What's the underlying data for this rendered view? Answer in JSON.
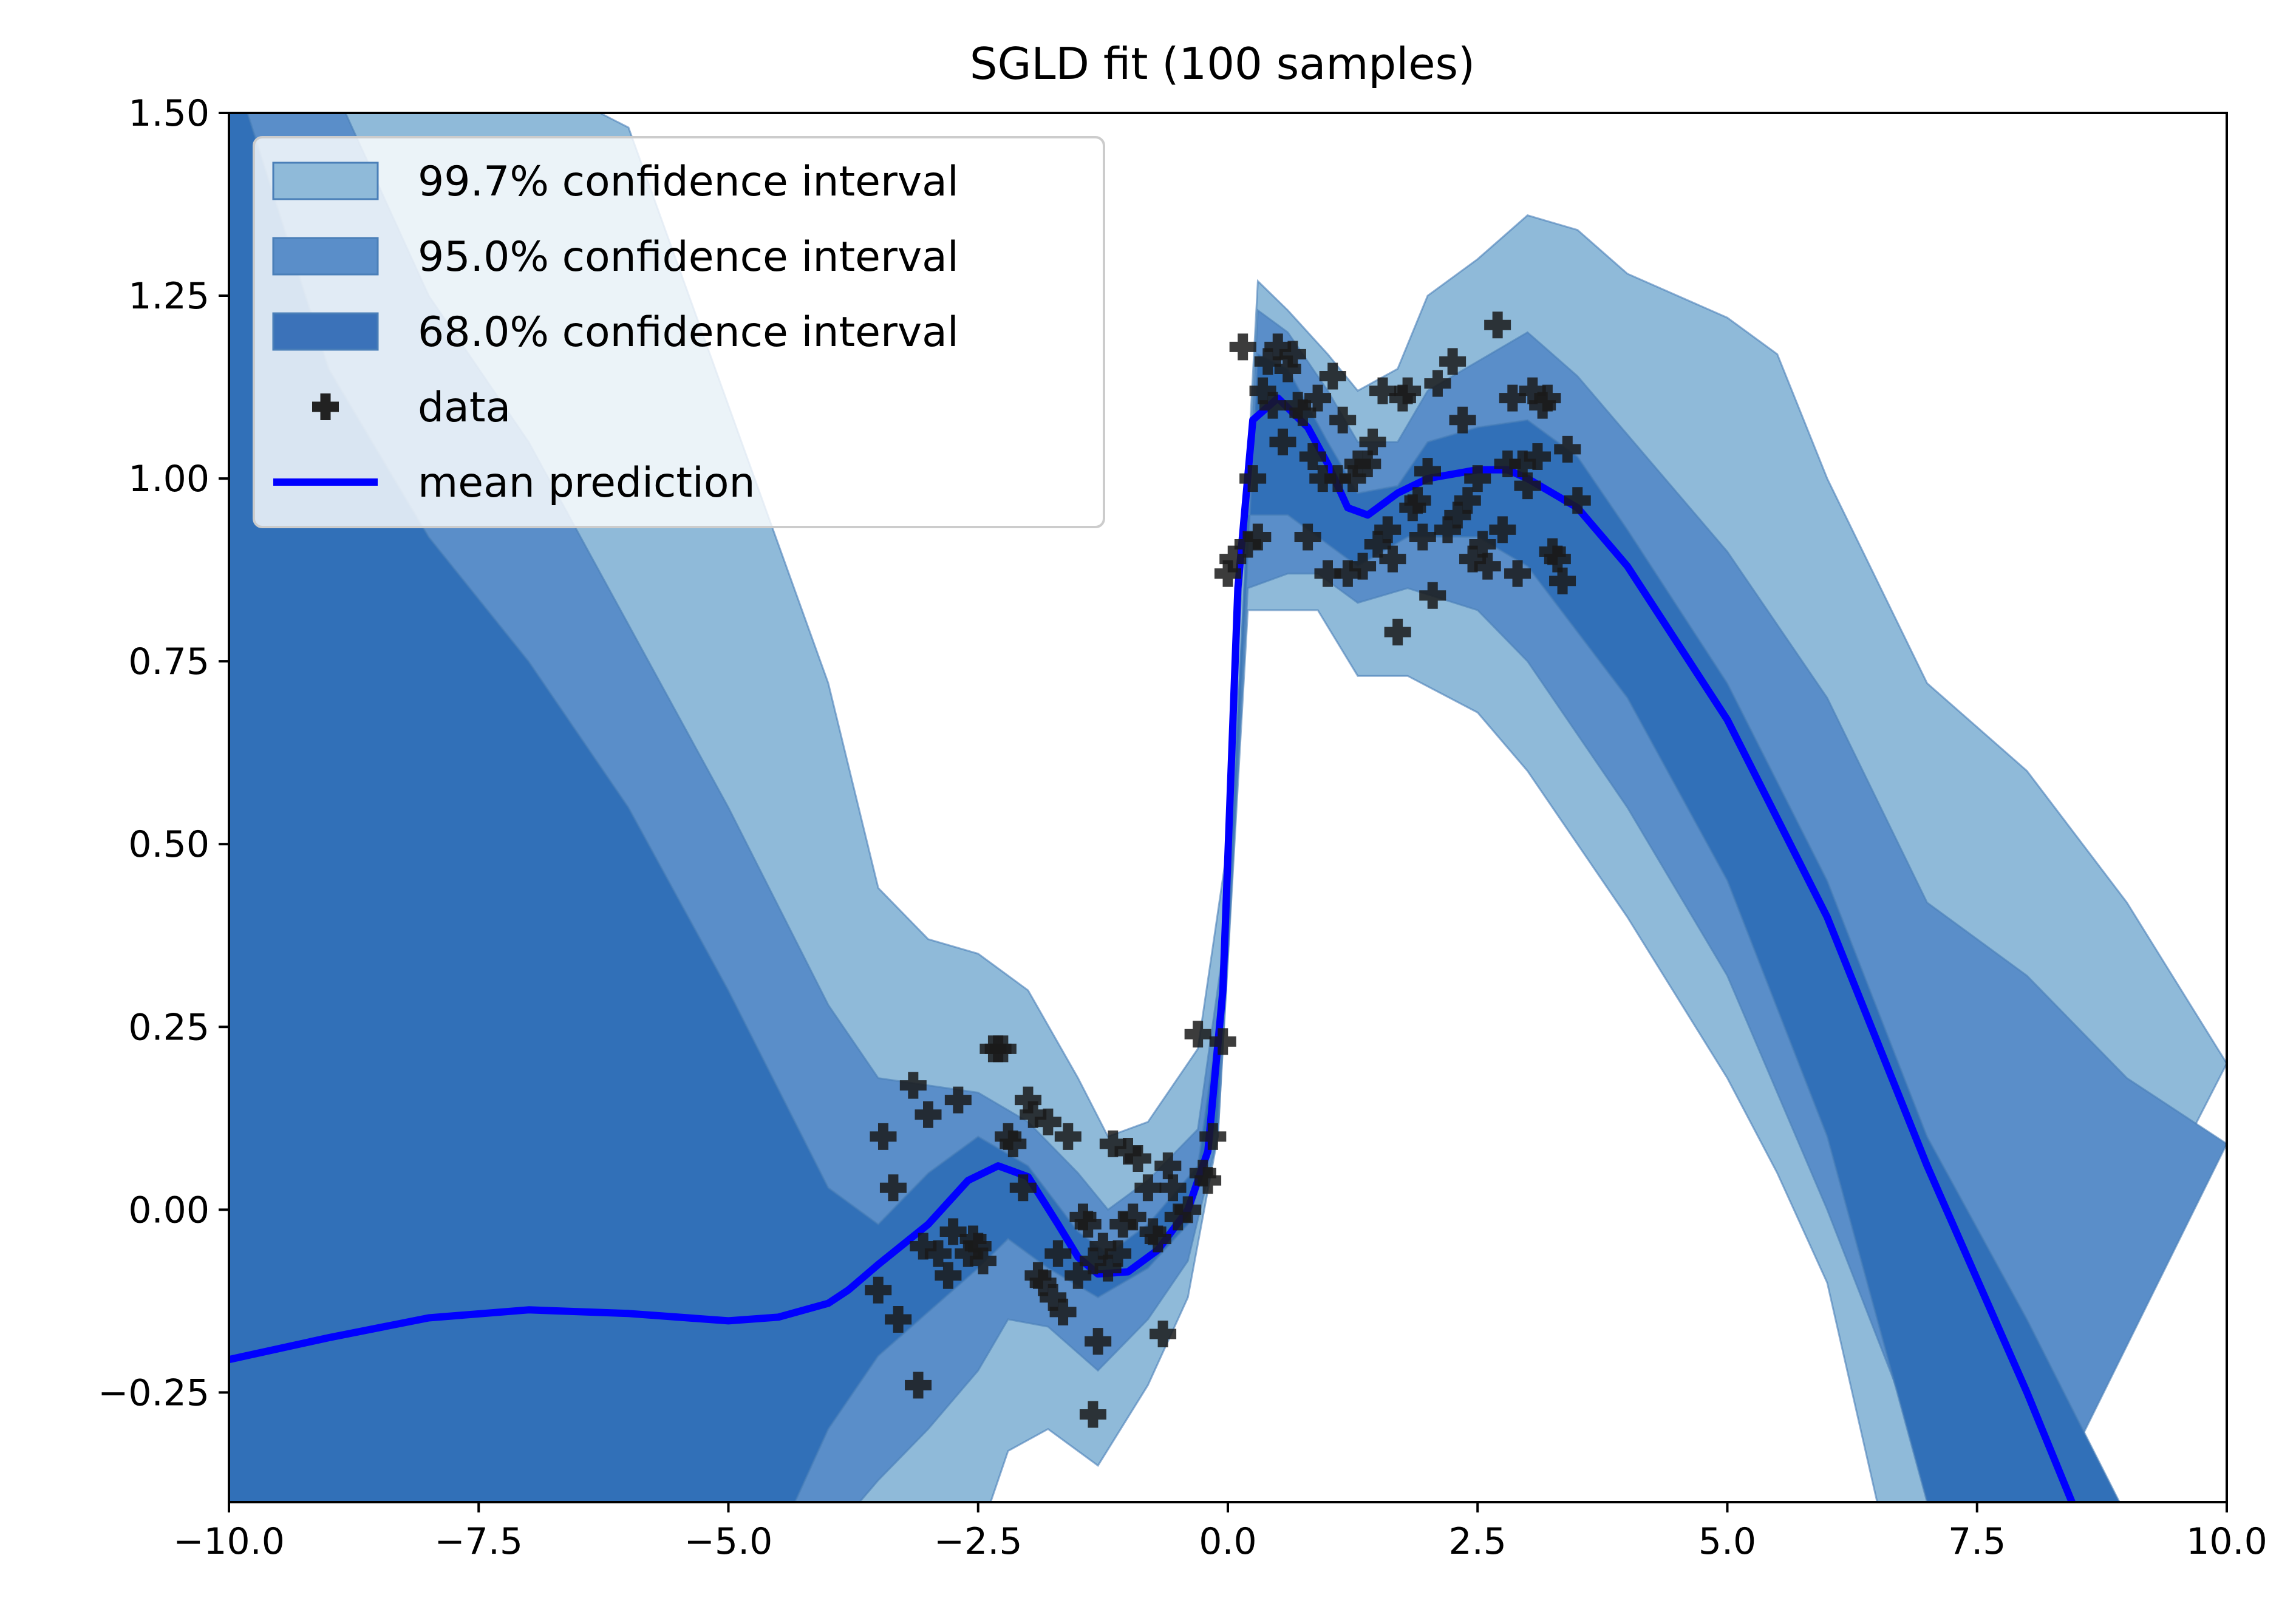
{
  "chart_data": {
    "type": "line",
    "title": "SGLD fit (100 samples)",
    "xlabel": "",
    "ylabel": "",
    "xlim": [
      -10,
      10
    ],
    "ylim": [
      -0.4,
      1.5
    ],
    "x_ticks": [
      -10,
      -7.5,
      -5,
      -2.5,
      0,
      2.5,
      5,
      7.5,
      10
    ],
    "x_tick_labels": [
      "−10.0",
      "−7.5",
      "−5.0",
      "−2.5",
      "0.0",
      "2.5",
      "5.0",
      "7.5",
      "10.0"
    ],
    "y_ticks": [
      -0.25,
      0,
      0.25,
      0.5,
      0.75,
      1.0,
      1.25,
      1.5
    ],
    "y_tick_labels": [
      "−0.25",
      "0.00",
      "0.25",
      "0.50",
      "0.75",
      "1.00",
      "1.25",
      "1.50"
    ],
    "grid": false,
    "legend_position": "upper-left",
    "legend": [
      {
        "label": "99.7% confidence interval",
        "kind": "patch",
        "color": "#8fbad9"
      },
      {
        "label": "95.0% confidence interval",
        "kind": "patch",
        "color": "#5a8ec9"
      },
      {
        "label": "68.0% confidence interval",
        "kind": "patch",
        "color": "#3b72b9"
      },
      {
        "label": "data",
        "kind": "marker",
        "color": "#222222"
      },
      {
        "label": "mean prediction",
        "kind": "line",
        "color": "#0000ff"
      }
    ],
    "bands": [
      {
        "name": "99.7% confidence interval",
        "color": "#8fbad9",
        "upper": [
          [
            -10,
            1.39
          ],
          [
            -9,
            1.55
          ],
          [
            -8,
            1.62
          ],
          [
            -7,
            1.55
          ],
          [
            -6,
            1.48
          ],
          [
            -5,
            1.1
          ],
          [
            -4,
            0.72
          ],
          [
            -3.5,
            0.44
          ],
          [
            -3,
            0.37
          ],
          [
            -2.5,
            0.35
          ],
          [
            -2,
            0.3
          ],
          [
            -1.5,
            0.18
          ],
          [
            -1.2,
            0.1
          ],
          [
            -0.8,
            0.12
          ],
          [
            -0.3,
            0.22
          ],
          [
            0,
            0.5
          ],
          [
            0.3,
            1.27
          ],
          [
            0.6,
            1.23
          ],
          [
            1.0,
            1.17
          ],
          [
            1.3,
            1.12
          ],
          [
            1.7,
            1.15
          ],
          [
            2.0,
            1.25
          ],
          [
            2.5,
            1.3
          ],
          [
            3.0,
            1.36
          ],
          [
            3.5,
            1.34
          ],
          [
            4.0,
            1.28
          ],
          [
            5.0,
            1.22
          ],
          [
            5.5,
            1.17
          ],
          [
            6.0,
            1.0
          ],
          [
            7.0,
            0.72
          ],
          [
            8.0,
            0.6
          ],
          [
            9.0,
            0.42
          ],
          [
            10.0,
            0.2
          ]
        ],
        "lower": [
          [
            -10,
            -0.45
          ],
          [
            -5,
            -0.45
          ],
          [
            -3.5,
            -0.6
          ],
          [
            -2.5,
            -0.45
          ],
          [
            -2.2,
            -0.33
          ],
          [
            -1.8,
            -0.3
          ],
          [
            -1.3,
            -0.35
          ],
          [
            -0.8,
            -0.24
          ],
          [
            -0.4,
            -0.12
          ],
          [
            -0.1,
            0.1
          ],
          [
            0.2,
            0.82
          ],
          [
            0.6,
            0.82
          ],
          [
            0.9,
            0.82
          ],
          [
            1.3,
            0.73
          ],
          [
            1.8,
            0.73
          ],
          [
            2.5,
            0.68
          ],
          [
            3.0,
            0.6
          ],
          [
            4.0,
            0.4
          ],
          [
            5.0,
            0.18
          ],
          [
            5.5,
            0.05
          ],
          [
            6.0,
            -0.1
          ],
          [
            6.5,
            -0.4
          ],
          [
            7.0,
            -0.6
          ]
        ]
      },
      {
        "name": "95.0% confidence interval",
        "color": "#5a8ec9",
        "upper": [
          [
            -10,
            1.58
          ],
          [
            -9,
            1.55
          ],
          [
            -8,
            1.25
          ],
          [
            -7,
            1.05
          ],
          [
            -6,
            0.8
          ],
          [
            -5,
            0.55
          ],
          [
            -4,
            0.28
          ],
          [
            -3.5,
            0.18
          ],
          [
            -3,
            0.17
          ],
          [
            -2.5,
            0.16
          ],
          [
            -2,
            0.12
          ],
          [
            -1.5,
            0.05
          ],
          [
            -1.2,
            0.0
          ],
          [
            -0.8,
            0.04
          ],
          [
            -0.3,
            0.11
          ],
          [
            0,
            0.4
          ],
          [
            0.3,
            1.23
          ],
          [
            0.6,
            1.2
          ],
          [
            1.0,
            1.12
          ],
          [
            1.3,
            1.05
          ],
          [
            1.7,
            1.05
          ],
          [
            2.0,
            1.12
          ],
          [
            2.5,
            1.16
          ],
          [
            3.0,
            1.2
          ],
          [
            3.5,
            1.14
          ],
          [
            4.0,
            1.06
          ],
          [
            5.0,
            0.9
          ],
          [
            6.0,
            0.7
          ],
          [
            7.0,
            0.42
          ],
          [
            8.0,
            0.32
          ],
          [
            9.0,
            0.18
          ],
          [
            10.0,
            0.09
          ]
        ],
        "lower": [
          [
            -10,
            -0.45
          ],
          [
            -4.0,
            -0.45
          ],
          [
            -3.5,
            -0.37
          ],
          [
            -3,
            -0.3
          ],
          [
            -2.5,
            -0.22
          ],
          [
            -2.2,
            -0.15
          ],
          [
            -1.8,
            -0.16
          ],
          [
            -1.3,
            -0.22
          ],
          [
            -0.8,
            -0.15
          ],
          [
            -0.4,
            -0.07
          ],
          [
            -0.1,
            0.1
          ],
          [
            0.2,
            0.85
          ],
          [
            0.6,
            0.87
          ],
          [
            0.9,
            0.87
          ],
          [
            1.3,
            0.83
          ],
          [
            1.8,
            0.85
          ],
          [
            2.5,
            0.82
          ],
          [
            3.0,
            0.75
          ],
          [
            4.0,
            0.55
          ],
          [
            5.0,
            0.32
          ],
          [
            6.0,
            0.0
          ],
          [
            7.0,
            -0.35
          ],
          [
            7.5,
            -0.6
          ]
        ]
      },
      {
        "name": "68.0% confidence interval",
        "color": "#3170b8",
        "upper": [
          [
            -10,
            1.58
          ],
          [
            -9,
            1.15
          ],
          [
            -8,
            0.92
          ],
          [
            -7,
            0.75
          ],
          [
            -6,
            0.55
          ],
          [
            -5,
            0.3
          ],
          [
            -4,
            0.03
          ],
          [
            -3.5,
            -0.02
          ],
          [
            -3,
            0.05
          ],
          [
            -2.5,
            0.1
          ],
          [
            -2,
            0.06
          ],
          [
            -1.5,
            -0.03
          ],
          [
            -1.2,
            -0.06
          ],
          [
            -0.8,
            -0.02
          ],
          [
            -0.3,
            0.06
          ],
          [
            0,
            0.35
          ],
          [
            0.3,
            1.17
          ],
          [
            0.6,
            1.15
          ],
          [
            1.0,
            1.05
          ],
          [
            1.3,
            0.98
          ],
          [
            1.7,
            0.99
          ],
          [
            2.0,
            1.05
          ],
          [
            2.5,
            1.07
          ],
          [
            3.0,
            1.08
          ],
          [
            3.5,
            1.03
          ],
          [
            4.0,
            0.93
          ],
          [
            5.0,
            0.72
          ],
          [
            6.0,
            0.45
          ],
          [
            7.0,
            0.1
          ],
          [
            8.0,
            -0.15
          ],
          [
            9.0,
            -0.42
          ]
        ],
        "lower": [
          [
            -10,
            -0.45
          ],
          [
            -4.5,
            -0.45
          ],
          [
            -4,
            -0.3
          ],
          [
            -3.5,
            -0.2
          ],
          [
            -3,
            -0.14
          ],
          [
            -2.5,
            -0.08
          ],
          [
            -2.2,
            -0.04
          ],
          [
            -1.8,
            -0.08
          ],
          [
            -1.3,
            -0.12
          ],
          [
            -0.8,
            -0.08
          ],
          [
            -0.4,
            -0.02
          ],
          [
            -0.1,
            0.12
          ],
          [
            0.2,
            0.95
          ],
          [
            0.6,
            0.95
          ],
          [
            0.9,
            0.92
          ],
          [
            1.3,
            0.88
          ],
          [
            1.8,
            0.92
          ],
          [
            2.5,
            0.92
          ],
          [
            3.0,
            0.88
          ],
          [
            4.0,
            0.7
          ],
          [
            5.0,
            0.45
          ],
          [
            6.0,
            0.1
          ],
          [
            6.5,
            -0.15
          ],
          [
            7.0,
            -0.4
          ],
          [
            7.2,
            -0.55
          ]
        ]
      }
    ],
    "mean": [
      [
        -10,
        -0.205
      ],
      [
        -9,
        -0.175
      ],
      [
        -8,
        -0.148
      ],
      [
        -7,
        -0.137
      ],
      [
        -6,
        -0.142
      ],
      [
        -5,
        -0.152
      ],
      [
        -4.5,
        -0.147
      ],
      [
        -4,
        -0.128
      ],
      [
        -3.8,
        -0.11
      ],
      [
        -3.5,
        -0.075
      ],
      [
        -3,
        -0.02
      ],
      [
        -2.6,
        0.04
      ],
      [
        -2.3,
        0.06
      ],
      [
        -2.0,
        0.045
      ],
      [
        -1.7,
        -0.02
      ],
      [
        -1.5,
        -0.065
      ],
      [
        -1.3,
        -0.088
      ],
      [
        -1.0,
        -0.085
      ],
      [
        -0.7,
        -0.055
      ],
      [
        -0.4,
        0.0
      ],
      [
        -0.2,
        0.08
      ],
      [
        -0.05,
        0.3
      ],
      [
        0.1,
        0.85
      ],
      [
        0.25,
        1.08
      ],
      [
        0.5,
        1.11
      ],
      [
        0.8,
        1.07
      ],
      [
        1.0,
        1.02
      ],
      [
        1.2,
        0.96
      ],
      [
        1.4,
        0.95
      ],
      [
        1.7,
        0.98
      ],
      [
        2.0,
        1.0
      ],
      [
        2.5,
        1.012
      ],
      [
        2.8,
        1.012
      ],
      [
        3.0,
        1.0
      ],
      [
        3.5,
        0.96
      ],
      [
        4.0,
        0.88
      ],
      [
        5.0,
        0.67
      ],
      [
        6.0,
        0.4
      ],
      [
        7.0,
        0.06
      ],
      [
        8.0,
        -0.25
      ],
      [
        8.6,
        -0.45
      ]
    ],
    "points": [
      [
        -3.45,
        0.1
      ],
      [
        -3.35,
        0.03
      ],
      [
        -3.3,
        -0.15
      ],
      [
        -3.5,
        -0.11
      ],
      [
        -3.15,
        0.17
      ],
      [
        -3.05,
        -0.05
      ],
      [
        -3.0,
        0.13
      ],
      [
        -2.9,
        -0.06
      ],
      [
        -2.8,
        -0.09
      ],
      [
        -2.75,
        -0.03
      ],
      [
        -2.7,
        0.15
      ],
      [
        -2.6,
        -0.06
      ],
      [
        -2.55,
        -0.04
      ],
      [
        -2.5,
        -0.05
      ],
      [
        -2.45,
        -0.07
      ],
      [
        -2.35,
        0.22
      ],
      [
        -2.3,
        0.22
      ],
      [
        -2.25,
        0.22
      ],
      [
        -2.2,
        0.1
      ],
      [
        -2.15,
        0.09
      ],
      [
        -2.05,
        0.03
      ],
      [
        -2.0,
        0.15
      ],
      [
        -1.95,
        0.13
      ],
      [
        -1.9,
        -0.09
      ],
      [
        -1.85,
        -0.1
      ],
      [
        -1.8,
        0.12
      ],
      [
        -1.75,
        -0.12
      ],
      [
        -1.7,
        -0.06
      ],
      [
        -1.65,
        -0.14
      ],
      [
        -1.6,
        0.1
      ],
      [
        -1.5,
        -0.09
      ],
      [
        -1.45,
        -0.01
      ],
      [
        -1.4,
        -0.02
      ],
      [
        -1.35,
        -0.07
      ],
      [
        -1.3,
        -0.18
      ],
      [
        -1.25,
        -0.05
      ],
      [
        -1.2,
        -0.08
      ],
      [
        -1.15,
        0.09
      ],
      [
        -1.1,
        -0.06
      ],
      [
        -1.05,
        -0.02
      ],
      [
        -1.0,
        0.08
      ],
      [
        -0.95,
        -0.01
      ],
      [
        -0.9,
        0.07
      ],
      [
        -0.8,
        0.03
      ],
      [
        -0.75,
        -0.03
      ],
      [
        -0.7,
        -0.04
      ],
      [
        -0.65,
        -0.17
      ],
      [
        -0.6,
        0.06
      ],
      [
        -0.55,
        0.03
      ],
      [
        -0.5,
        -0.01
      ],
      [
        -0.4,
        0.0
      ],
      [
        -0.3,
        0.24
      ],
      [
        -0.25,
        0.05
      ],
      [
        -0.2,
        0.04
      ],
      [
        -0.15,
        0.1
      ],
      [
        -0.05,
        0.23
      ],
      [
        -3.1,
        -0.24
      ],
      [
        -1.35,
        -0.28
      ],
      [
        0.0,
        0.87
      ],
      [
        0.05,
        0.89
      ],
      [
        0.15,
        1.18
      ],
      [
        0.2,
        0.91
      ],
      [
        0.25,
        1.0
      ],
      [
        0.3,
        0.92
      ],
      [
        0.35,
        1.12
      ],
      [
        0.4,
        1.16
      ],
      [
        0.45,
        1.1
      ],
      [
        0.5,
        1.18
      ],
      [
        0.55,
        1.05
      ],
      [
        0.6,
        1.15
      ],
      [
        0.65,
        1.17
      ],
      [
        0.7,
        1.1
      ],
      [
        0.75,
        1.09
      ],
      [
        0.8,
        0.92
      ],
      [
        0.85,
        1.03
      ],
      [
        0.9,
        1.11
      ],
      [
        0.95,
        1.0
      ],
      [
        1.0,
        0.87
      ],
      [
        1.05,
        1.14
      ],
      [
        1.1,
        1.0
      ],
      [
        1.15,
        1.08
      ],
      [
        1.2,
        0.87
      ],
      [
        1.25,
        1.0
      ],
      [
        1.3,
        1.02
      ],
      [
        1.35,
        0.88
      ],
      [
        1.4,
        1.02
      ],
      [
        1.45,
        1.05
      ],
      [
        1.5,
        0.91
      ],
      [
        1.55,
        1.12
      ],
      [
        1.6,
        0.93
      ],
      [
        1.65,
        0.89
      ],
      [
        1.7,
        0.79
      ],
      [
        1.75,
        1.11
      ],
      [
        1.8,
        1.12
      ],
      [
        1.85,
        0.96
      ],
      [
        1.9,
        0.97
      ],
      [
        1.95,
        0.92
      ],
      [
        2.0,
        1.01
      ],
      [
        2.05,
        0.84
      ],
      [
        2.1,
        1.13
      ],
      [
        2.2,
        0.93
      ],
      [
        2.25,
        1.16
      ],
      [
        2.3,
        0.95
      ],
      [
        2.35,
        1.08
      ],
      [
        2.4,
        0.97
      ],
      [
        2.45,
        0.89
      ],
      [
        2.5,
        1.0
      ],
      [
        2.55,
        0.91
      ],
      [
        2.6,
        0.88
      ],
      [
        2.7,
        1.21
      ],
      [
        2.75,
        0.93
      ],
      [
        2.8,
        1.02
      ],
      [
        2.85,
        1.11
      ],
      [
        2.9,
        0.87
      ],
      [
        2.95,
        1.02
      ],
      [
        3.0,
        0.99
      ],
      [
        3.05,
        1.12
      ],
      [
        3.1,
        1.03
      ],
      [
        3.15,
        1.1
      ],
      [
        3.2,
        1.11
      ],
      [
        3.25,
        0.9
      ],
      [
        3.3,
        0.89
      ],
      [
        3.35,
        0.86
      ],
      [
        3.4,
        1.04
      ],
      [
        3.5,
        0.97
      ]
    ]
  }
}
